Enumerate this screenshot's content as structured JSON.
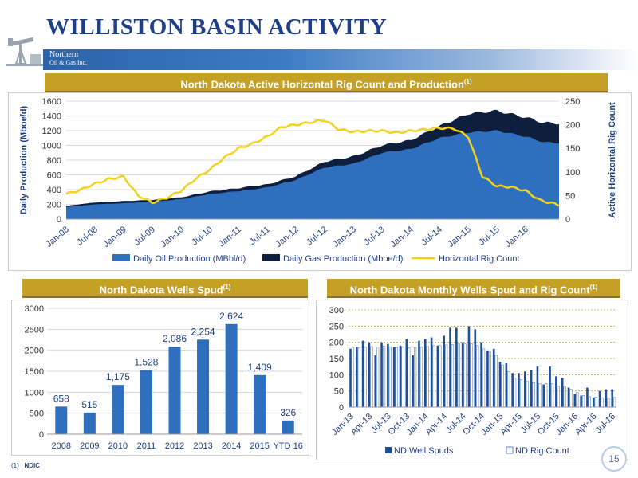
{
  "page": {
    "title": "WILLISTON BASIN ACTIVITY",
    "logo_line1": "Northern",
    "logo_line2": "Oil & Gas Inc.",
    "footnote_marker": "(1)",
    "footnote_text": "NDIC",
    "page_number": "15"
  },
  "colors": {
    "gold": "#c4a024",
    "navy": "#1f3f84",
    "oil": "#2e6fc0",
    "gas": "#0d1f3c",
    "rig": "#f2d11f",
    "spud_bar": "#2e6fc0"
  },
  "chart_data": [
    {
      "type": "area",
      "title": "North Dakota Active Horizontal Rig Count and Production",
      "title_sup": "(1)",
      "ylabel": "Daily Production (Mboe/d)",
      "y2label": "Active Horizontal Rig Count",
      "ylim": [
        0,
        1600
      ],
      "y2lim": [
        0,
        250
      ],
      "yticks": [
        0,
        200,
        400,
        600,
        800,
        1000,
        1200,
        1400,
        1600
      ],
      "y2ticks": [
        0,
        50,
        100,
        150,
        200,
        250
      ],
      "x_tick_labels": [
        "Jan-08",
        "Jul-08",
        "Jan-09",
        "Jul-09",
        "Jan-10",
        "Jul-10",
        "Jan-11",
        "Jul-11",
        "Jan-12",
        "Jul-12",
        "Jan-13",
        "Jul-13",
        "Jan-14",
        "Jul-14",
        "Jan-15",
        "Jul-15",
        "Jan-16"
      ],
      "x_tick_months": [
        0,
        6,
        12,
        18,
        24,
        30,
        36,
        42,
        48,
        54,
        60,
        66,
        72,
        78,
        84,
        90,
        96
      ],
      "x_months_range": [
        0,
        103
      ],
      "grid": true,
      "legend_position": "bottom",
      "series": [
        {
          "name": "Daily Oil Production (MBbl/d)",
          "kind": "area",
          "months": [
            0,
            6,
            12,
            18,
            24,
            30,
            36,
            42,
            48,
            54,
            60,
            66,
            72,
            78,
            84,
            90,
            96,
            100,
            103
          ],
          "values": [
            165,
            200,
            215,
            235,
            270,
            340,
            380,
            430,
            530,
            700,
            750,
            900,
            950,
            1100,
            1175,
            1200,
            1120,
            1040,
            1035
          ]
        },
        {
          "name": "Daily Gas Production (Mboe/d)",
          "kind": "area",
          "months": [
            0,
            6,
            12,
            18,
            24,
            30,
            36,
            42,
            48,
            54,
            60,
            66,
            72,
            78,
            84,
            90,
            96,
            100,
            103
          ],
          "values": [
            180,
            225,
            245,
            260,
            295,
            375,
            420,
            470,
            580,
            780,
            850,
            1000,
            1070,
            1260,
            1430,
            1470,
            1380,
            1305,
            1300
          ]
        },
        {
          "name": "Horizontal Rig Count",
          "kind": "line",
          "axis": "right",
          "months": [
            0,
            3,
            6,
            9,
            12,
            15,
            18,
            21,
            24,
            27,
            30,
            33,
            36,
            39,
            42,
            45,
            48,
            51,
            54,
            57,
            60,
            63,
            66,
            69,
            72,
            75,
            78,
            81,
            84,
            87,
            90,
            93,
            96,
            99,
            103
          ],
          "values": [
            53,
            62,
            75,
            85,
            90,
            50,
            35,
            45,
            60,
            85,
            105,
            130,
            150,
            160,
            175,
            195,
            200,
            205,
            210,
            190,
            185,
            187,
            187,
            183,
            187,
            190,
            193,
            192,
            175,
            90,
            70,
            68,
            60,
            40,
            30
          ]
        }
      ]
    },
    {
      "type": "bar",
      "title": "North Dakota Wells Spud",
      "title_sup": "(1)",
      "categories": [
        "2008",
        "2009",
        "2010",
        "2011",
        "2012",
        "2013",
        "2014",
        "2015",
        "YTD 16"
      ],
      "values": [
        658,
        515,
        1175,
        1528,
        2086,
        2254,
        2624,
        1409,
        326
      ],
      "value_labels": [
        "658",
        "515",
        "1,175",
        "1,528",
        "2,086",
        "2,254",
        "2,624",
        "1,409",
        "326"
      ],
      "ylim": [
        0,
        3000
      ],
      "yticks": [
        0,
        500,
        1000,
        1500,
        2000,
        2500,
        3000
      ],
      "grid": true
    },
    {
      "type": "bar",
      "title": "North Dakota Monthly Wells Spud and Rig Count",
      "title_sup": "(1)",
      "categories": [
        "Jan-13",
        "Feb-13",
        "Mar-13",
        "Apr-13",
        "May-13",
        "Jun-13",
        "Jul-13",
        "Aug-13",
        "Sep-13",
        "Oct-13",
        "Nov-13",
        "Dec-13",
        "Jan-14",
        "Feb-14",
        "Mar-14",
        "Apr-14",
        "May-14",
        "Jun-14",
        "Jul-14",
        "Aug-14",
        "Sep-14",
        "Oct-14",
        "Nov-14",
        "Dec-14",
        "Jan-15",
        "Feb-15",
        "Mar-15",
        "Apr-15",
        "May-15",
        "Jun-15",
        "Jul-15",
        "Aug-15",
        "Sep-15",
        "Oct-15",
        "Nov-15",
        "Dec-15",
        "Jan-16",
        "Feb-16",
        "Mar-16",
        "Apr-16",
        "May-16",
        "Jun-16",
        "Jul-16"
      ],
      "x_tick_labels": [
        "Jan-13",
        "Apr-13",
        "Jul-13",
        "Oct-13",
        "Jan-14",
        "Apr-14",
        "Jul-14",
        "Oct-14",
        "Jan-15",
        "Apr-15",
        "Jul-15",
        "Oct-15",
        "Jan-16",
        "Apr-16",
        "Jul-16"
      ],
      "series": [
        {
          "name": "ND Well Spuds",
          "values": [
            180,
            185,
            205,
            200,
            160,
            200,
            195,
            185,
            190,
            210,
            160,
            205,
            210,
            215,
            190,
            220,
            245,
            245,
            200,
            250,
            240,
            200,
            175,
            180,
            140,
            135,
            105,
            105,
            110,
            115,
            125,
            70,
            125,
            95,
            90,
            60,
            40,
            35,
            60,
            30,
            50,
            55,
            55
          ]
        },
        {
          "name": "ND Rig Count",
          "values": [
            185,
            183,
            185,
            187,
            186,
            188,
            186,
            184,
            185,
            183,
            184,
            185,
            187,
            190,
            190,
            192,
            193,
            195,
            195,
            196,
            190,
            180,
            170,
            160,
            130,
            110,
            90,
            85,
            80,
            75,
            72,
            73,
            72,
            65,
            64,
            55,
            45,
            36,
            32,
            31,
            29,
            28,
            30
          ]
        }
      ],
      "ylim": [
        0,
        300
      ],
      "yticks": [
        0,
        50,
        100,
        150,
        200,
        250,
        300
      ],
      "grid": true,
      "legend_position": "bottom"
    }
  ]
}
